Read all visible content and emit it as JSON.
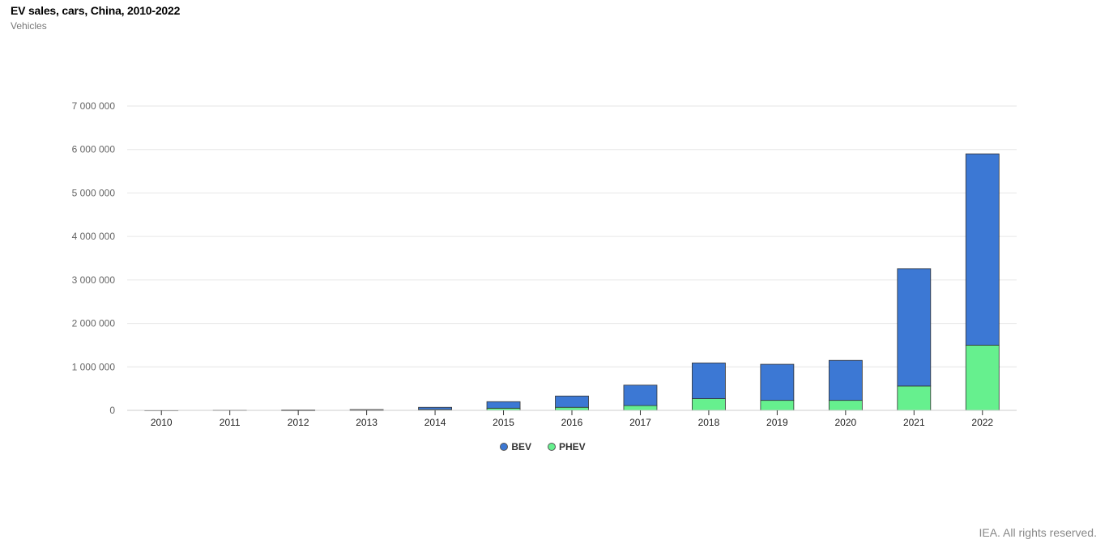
{
  "title": "EV sales, cars, China, 2010-2022",
  "subtitle": "Vehicles",
  "credits": "IEA. All rights reserved.",
  "chart_data": {
    "type": "bar",
    "stacked": true,
    "categories": [
      "2010",
      "2011",
      "2012",
      "2013",
      "2014",
      "2015",
      "2016",
      "2017",
      "2018",
      "2019",
      "2020",
      "2021",
      "2022"
    ],
    "series": [
      {
        "name": "PHEV",
        "color": "#66f08e",
        "values": [
          0,
          0,
          1000,
          4000,
          20000,
          50000,
          70000,
          110000,
          270000,
          230000,
          230000,
          560000,
          1500000
        ]
      },
      {
        "name": "BEV",
        "color": "#3c78d4",
        "values": [
          1000,
          5000,
          10000,
          15000,
          50000,
          150000,
          260000,
          470000,
          820000,
          830000,
          920000,
          2700000,
          4400000
        ]
      }
    ],
    "legend_order": [
      "BEV",
      "PHEV"
    ],
    "ylim": [
      0,
      7000000
    ],
    "yticks": [
      0,
      1000000,
      2000000,
      3000000,
      4000000,
      5000000,
      6000000,
      7000000
    ],
    "ytick_labels": [
      "0",
      "1 000 000",
      "2 000 000",
      "3 000 000",
      "4 000 000",
      "5 000 000",
      "6 000 000",
      "7 000 000"
    ],
    "xlabel": "",
    "ylabel": "",
    "grid": true,
    "legend_position": "bottom-center"
  }
}
